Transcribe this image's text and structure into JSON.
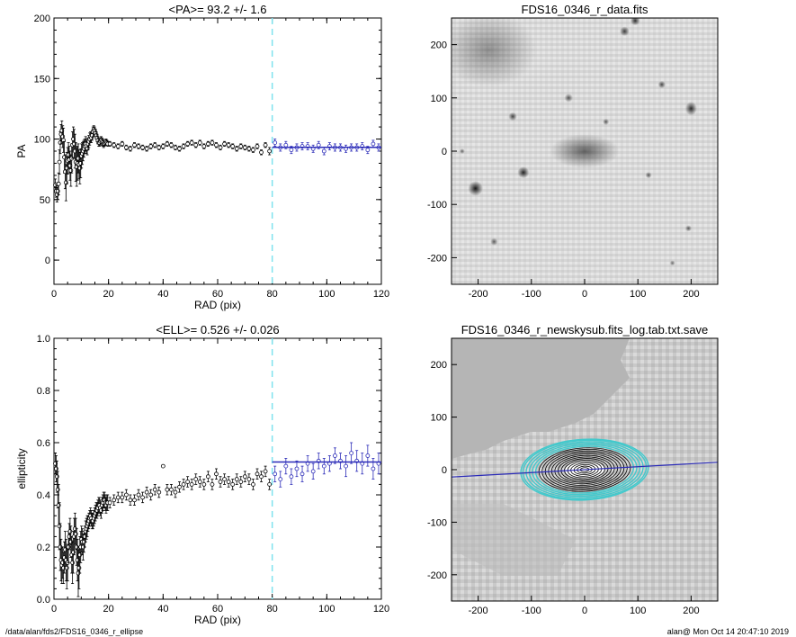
{
  "chart_data": [
    {
      "type": "scatter",
      "title": "<PA>=  93.2 +/-   1.6",
      "xlabel": "RAD (pix)",
      "ylabel": "PA",
      "xlim": [
        0,
        120
      ],
      "ylim": [
        -20,
        200
      ],
      "xticks": [
        0,
        20,
        40,
        60,
        80,
        100,
        120
      ],
      "yticks": [
        0,
        50,
        100,
        150,
        200
      ],
      "vline_x": 80,
      "fit": {
        "x": [
          80,
          120
        ],
        "y": [
          93.2,
          93.2
        ],
        "color": "#2b2bb8"
      },
      "series": [
        {
          "x": [
            0.5,
            0.8,
            1.1,
            1.4,
            1.7,
            2.0,
            2.3,
            2.6,
            2.9,
            3.2,
            3.5,
            3.8,
            4.1,
            4.4,
            4.7,
            5.0,
            5.3,
            5.6,
            5.9,
            6.2,
            6.5,
            6.8,
            7.1,
            7.4,
            7.7,
            8.0,
            8.3,
            8.6,
            8.9,
            9.2,
            9.5,
            9.8,
            10.1,
            10.4,
            10.7,
            11.0,
            11.3,
            11.6,
            11.9,
            12.2,
            12.5,
            12.8,
            13.1,
            13.4,
            13.7,
            14.0,
            14.3,
            14.6,
            14.9,
            15.2,
            15.5,
            15.8,
            16.1,
            16.4,
            16.7,
            17.0,
            17.3,
            17.6,
            17.9,
            18.2,
            18.5,
            18.8,
            19.1,
            19.4,
            19.7
          ],
          "y": [
            62,
            57,
            54,
            57,
            63,
            81,
            97,
            104,
            107,
            102,
            99,
            85,
            73,
            64,
            76,
            82,
            87,
            83,
            78,
            74,
            84,
            95,
            100,
            96,
            90,
            81,
            77,
            80,
            84,
            79,
            76,
            80,
            86,
            88,
            90,
            92,
            94,
            96,
            94,
            92,
            96,
            98,
            100,
            102,
            101,
            103,
            106,
            108,
            107,
            105,
            103,
            101,
            99,
            97,
            97,
            98,
            99,
            98,
            97,
            96,
            96,
            97,
            98,
            97,
            96
          ],
          "err": [
            5,
            5,
            6,
            7,
            9,
            10,
            9,
            8,
            8,
            9,
            10,
            13,
            14,
            15,
            13,
            11,
            10,
            11,
            12,
            13,
            12,
            11,
            10,
            12,
            14,
            16,
            16,
            14,
            12,
            12,
            13,
            12,
            10,
            9,
            8,
            7,
            6,
            6,
            6,
            5,
            5,
            5,
            5,
            4,
            4,
            4,
            4,
            3,
            3,
            3,
            3,
            3,
            3,
            3,
            3,
            3,
            3,
            3,
            3,
            3,
            2,
            2,
            2,
            2,
            2
          ]
        },
        {
          "x": [
            20.5,
            22.0,
            23.5,
            25.0,
            26.5,
            28.0,
            29.5,
            31.0,
            32.5,
            34.0,
            35.5,
            37.0,
            38.5,
            40.0,
            41.5,
            43.0,
            44.5,
            46.0,
            47.5,
            49.0,
            50.5,
            52.0,
            53.5,
            55.0,
            56.5,
            58.0,
            59.5,
            61.0,
            62.5,
            64.0,
            65.5,
            67.0,
            68.5,
            70.0,
            71.5,
            73.0,
            74.5,
            76.0,
            77.5,
            79.0
          ],
          "y": [
            96,
            95,
            94,
            96,
            93,
            92,
            95,
            94,
            93,
            92,
            94,
            95,
            93,
            94,
            96,
            95,
            93,
            92,
            94,
            96,
            97,
            95,
            97,
            94,
            96,
            97,
            95,
            93,
            96,
            95,
            94,
            92,
            94,
            93,
            92,
            91,
            94,
            89,
            95,
            90
          ],
          "err": [
            2,
            2,
            2,
            2,
            2,
            2,
            2,
            2,
            2,
            2,
            2,
            2,
            2,
            2,
            2,
            2,
            2,
            2,
            2,
            2,
            2,
            2,
            2,
            2,
            2,
            2,
            2,
            2,
            2,
            2,
            2,
            2,
            2,
            2,
            2,
            2,
            2,
            2,
            2,
            3
          ]
        },
        {
          "x": [
            81,
            83,
            85,
            87,
            89,
            91,
            93,
            95,
            97,
            99,
            101,
            103,
            105,
            107,
            109,
            111,
            113,
            115,
            117,
            119
          ],
          "y": [
            97,
            93,
            95,
            91,
            93,
            94,
            94,
            92,
            95,
            90,
            94,
            93,
            93,
            92,
            93,
            93,
            94,
            91,
            96,
            93
          ],
          "err": [
            3,
            3,
            3,
            3,
            3,
            3,
            3,
            3,
            3,
            3,
            3,
            3,
            3,
            3,
            3,
            3,
            3,
            3,
            3,
            3
          ]
        }
      ]
    },
    {
      "type": "image",
      "title": "FDS16_0346_r_data.fits",
      "xlim": [
        -250,
        250
      ],
      "ylim": [
        -250,
        250
      ],
      "xticks": [
        -200,
        -100,
        0,
        100,
        200
      ],
      "yticks": [
        -200,
        -100,
        0,
        100,
        200
      ],
      "blobs": [
        {
          "x": 0,
          "y": 0,
          "rx": 65,
          "ry": 32,
          "tone": 0.55
        },
        {
          "x": -205,
          "y": -70,
          "rx": 14,
          "ry": 14,
          "tone": 0.9
        },
        {
          "x": -115,
          "y": -40,
          "rx": 11,
          "ry": 11,
          "tone": 0.85
        },
        {
          "x": -135,
          "y": 65,
          "rx": 8,
          "ry": 8,
          "tone": 0.7
        },
        {
          "x": -30,
          "y": 100,
          "rx": 8,
          "ry": 8,
          "tone": 0.6
        },
        {
          "x": 40,
          "y": 55,
          "rx": 6,
          "ry": 6,
          "tone": 0.6
        },
        {
          "x": 75,
          "y": 225,
          "rx": 9,
          "ry": 9,
          "tone": 0.75
        },
        {
          "x": 95,
          "y": 245,
          "rx": 9,
          "ry": 9,
          "tone": 0.8
        },
        {
          "x": 145,
          "y": 125,
          "rx": 7,
          "ry": 7,
          "tone": 0.7
        },
        {
          "x": 200,
          "y": 80,
          "rx": 11,
          "ry": 13,
          "tone": 0.8
        },
        {
          "x": 120,
          "y": -45,
          "rx": 6,
          "ry": 6,
          "tone": 0.6
        },
        {
          "x": -170,
          "y": -170,
          "rx": 7,
          "ry": 7,
          "tone": 0.6
        },
        {
          "x": 195,
          "y": -145,
          "rx": 6,
          "ry": 6,
          "tone": 0.6
        },
        {
          "x": -230,
          "y": 0,
          "rx": 5,
          "ry": 5,
          "tone": 0.55
        },
        {
          "x": 165,
          "y": -210,
          "rx": 5,
          "ry": 5,
          "tone": 0.55
        },
        {
          "x": -180,
          "y": 190,
          "rx": 90,
          "ry": 70,
          "tone": 0.35
        }
      ]
    },
    {
      "type": "scatter",
      "title": "<ELL>= 0.526 +/-  0.026",
      "xlabel": "RAD (pix)",
      "ylabel": "ellipticity",
      "xlim": [
        0,
        120
      ],
      "ylim": [
        0,
        1
      ],
      "xticks": [
        0,
        20,
        40,
        60,
        80,
        100,
        120
      ],
      "yticks": [
        0.0,
        0.2,
        0.4,
        0.6,
        0.8,
        1.0
      ],
      "vline_x": 80,
      "fit": {
        "x": [
          80,
          120
        ],
        "y": [
          0.526,
          0.526
        ],
        "color": "#2b2bb8"
      },
      "series": [
        {
          "x": [
            0.5,
            0.8,
            1.1,
            1.4,
            1.7,
            2.0,
            2.3,
            2.6,
            2.9,
            3.2,
            3.5,
            3.8,
            4.1,
            4.4,
            4.7,
            5.0,
            5.3,
            5.6,
            5.9,
            6.2,
            6.5,
            6.8,
            7.1,
            7.4,
            7.7,
            8.0,
            8.3,
            8.6,
            8.9,
            9.2,
            9.5,
            9.8,
            10.1,
            10.4,
            10.7,
            11.0,
            11.3,
            11.6,
            11.9,
            12.2,
            12.5,
            12.8,
            13.1,
            13.4,
            13.7,
            14.0,
            14.3,
            14.6,
            14.9,
            15.2,
            15.5,
            15.8,
            16.1,
            16.4,
            16.7,
            17.0,
            17.3,
            17.6,
            17.9,
            18.2,
            18.5,
            18.8,
            19.1,
            19.4,
            19.7
          ],
          "y": [
            0.52,
            0.5,
            0.47,
            0.42,
            0.36,
            0.28,
            0.2,
            0.15,
            0.13,
            0.14,
            0.12,
            0.16,
            0.19,
            0.15,
            0.12,
            0.14,
            0.2,
            0.24,
            0.26,
            0.22,
            0.17,
            0.14,
            0.18,
            0.24,
            0.27,
            0.25,
            0.2,
            0.15,
            0.1,
            0.12,
            0.17,
            0.2,
            0.23,
            0.22,
            0.2,
            0.22,
            0.24,
            0.26,
            0.27,
            0.28,
            0.29,
            0.3,
            0.31,
            0.32,
            0.31,
            0.3,
            0.3,
            0.31,
            0.32,
            0.33,
            0.34,
            0.34,
            0.35,
            0.36,
            0.36,
            0.35,
            0.34,
            0.36,
            0.37,
            0.38,
            0.38,
            0.37,
            0.36,
            0.37,
            0.37
          ],
          "err": [
            0.04,
            0.05,
            0.06,
            0.07,
            0.08,
            0.09,
            0.09,
            0.08,
            0.07,
            0.06,
            0.06,
            0.06,
            0.07,
            0.08,
            0.08,
            0.07,
            0.06,
            0.05,
            0.05,
            0.06,
            0.07,
            0.08,
            0.08,
            0.07,
            0.06,
            0.06,
            0.07,
            0.08,
            0.09,
            0.08,
            0.07,
            0.06,
            0.05,
            0.05,
            0.05,
            0.04,
            0.04,
            0.04,
            0.04,
            0.04,
            0.03,
            0.03,
            0.03,
            0.03,
            0.03,
            0.03,
            0.03,
            0.03,
            0.03,
            0.03,
            0.03,
            0.03,
            0.03,
            0.03,
            0.03,
            0.03,
            0.03,
            0.03,
            0.03,
            0.03,
            0.03,
            0.03,
            0.03,
            0.03,
            0.03
          ]
        },
        {
          "x": [
            20.5,
            22.0,
            23.5,
            25.0,
            26.5,
            28.0,
            29.5,
            31.0,
            32.5,
            34.0,
            35.5,
            37.0,
            38.5,
            40.0,
            41.5,
            43.0,
            44.5,
            46.0,
            47.5,
            49.0,
            50.5,
            52.0,
            53.5,
            55.0,
            56.5,
            58.0,
            59.5,
            61.0,
            62.5,
            64.0,
            65.5,
            67.0,
            68.5,
            70.0,
            71.5,
            73.0,
            74.5,
            76.0,
            77.5,
            79.0
          ],
          "y": [
            0.37,
            0.38,
            0.39,
            0.39,
            0.4,
            0.38,
            0.38,
            0.4,
            0.39,
            0.41,
            0.4,
            0.42,
            0.41,
            0.51,
            0.42,
            0.42,
            0.41,
            0.43,
            0.44,
            0.45,
            0.44,
            0.46,
            0.45,
            0.44,
            0.47,
            0.44,
            0.48,
            0.45,
            0.46,
            0.45,
            0.44,
            0.46,
            0.45,
            0.47,
            0.46,
            0.44,
            0.48,
            0.47,
            0.49,
            0.44
          ],
          "err": [
            0.02,
            0.02,
            0.02,
            0.02,
            0.02,
            0.02,
            0.02,
            0.02,
            0.02,
            0.02,
            0.02,
            0.02,
            0.02,
            0.0,
            0.02,
            0.02,
            0.02,
            0.02,
            0.02,
            0.02,
            0.02,
            0.02,
            0.02,
            0.02,
            0.02,
            0.02,
            0.02,
            0.02,
            0.02,
            0.02,
            0.02,
            0.02,
            0.02,
            0.02,
            0.02,
            0.02,
            0.02,
            0.02,
            0.02,
            0.02
          ]
        },
        {
          "x": [
            81,
            83,
            85,
            87,
            89,
            91,
            93,
            95,
            97,
            99,
            101,
            103,
            105,
            107,
            109,
            111,
            113,
            115,
            117,
            119
          ],
          "y": [
            0.48,
            0.46,
            0.51,
            0.47,
            0.5,
            0.48,
            0.52,
            0.49,
            0.53,
            0.51,
            0.52,
            0.55,
            0.53,
            0.51,
            0.56,
            0.53,
            0.52,
            0.55,
            0.5,
            0.52
          ],
          "err": [
            0.03,
            0.03,
            0.03,
            0.03,
            0.03,
            0.03,
            0.03,
            0.03,
            0.03,
            0.03,
            0.03,
            0.03,
            0.03,
            0.04,
            0.04,
            0.04,
            0.04,
            0.04,
            0.04,
            0.04
          ]
        }
      ]
    },
    {
      "type": "image",
      "title": "FDS16_0346_r_newskysub.fits_log.tab.txt.save",
      "xlim": [
        -250,
        250
      ],
      "ylim": [
        -250,
        250
      ],
      "xticks": [
        -200,
        -100,
        0,
        100,
        200
      ],
      "yticks": [
        -200,
        -100,
        0,
        100,
        200
      ],
      "major_axis_line": {
        "x": [
          -250,
          250
        ],
        "y": [
          -14,
          14
        ],
        "color": "#2b2bb8"
      },
      "ellipses": {
        "pa_deg": 93.2,
        "ell": 0.526,
        "smas": [
          8,
          14,
          20,
          26,
          32,
          38,
          44,
          50,
          56,
          62,
          68,
          74,
          80,
          86,
          92,
          98,
          104,
          110,
          116,
          120
        ],
        "outer_color": "#43c9cc"
      }
    }
  ],
  "footer": {
    "left": "/data/alan/fds2/FDS16_0346_r_ellipse",
    "right": "alan@  Mon Oct 14 20:47:10 2019"
  }
}
